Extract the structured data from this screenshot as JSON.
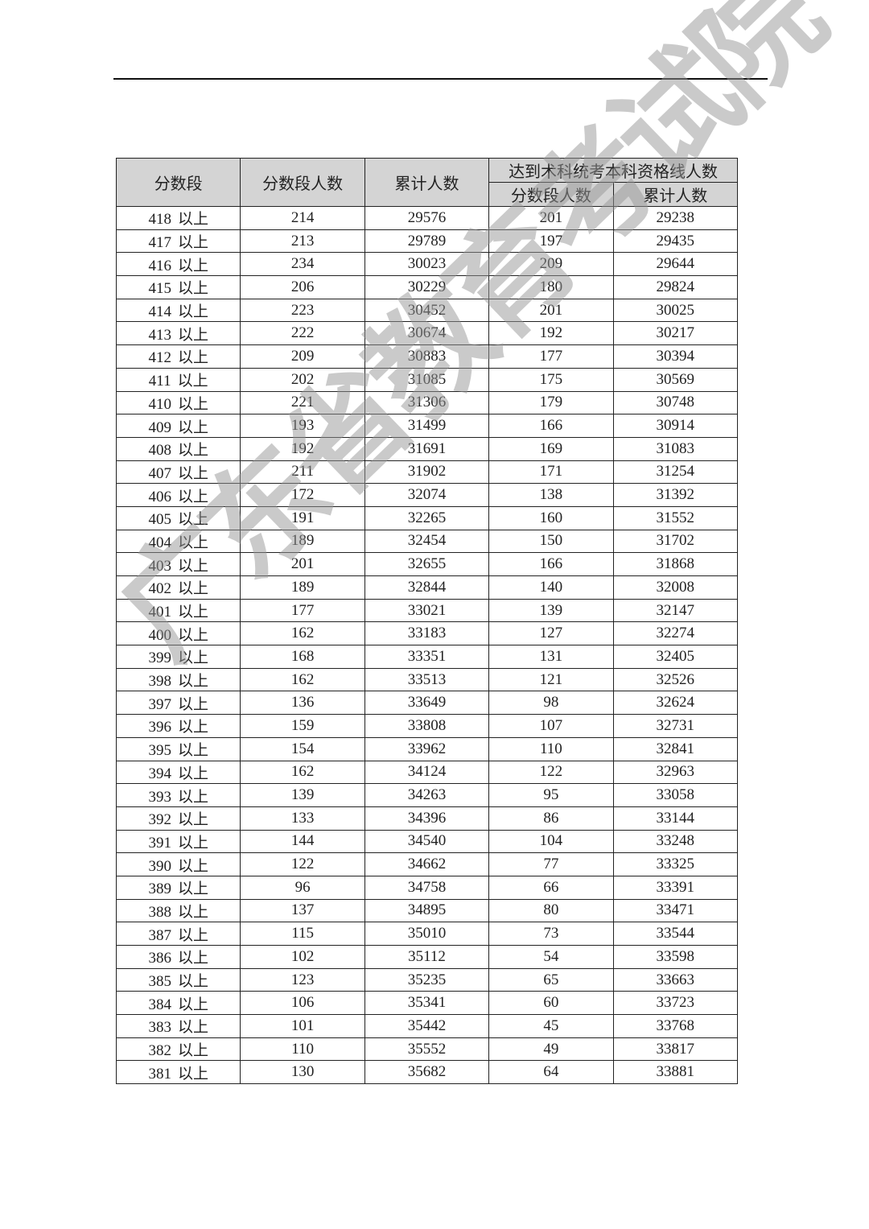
{
  "header": {
    "col_score": "分数段",
    "col_count": "分数段人数",
    "col_cumulative": "累计人数",
    "col_group": "达到术科统考本科资格线人数",
    "col_group_count": "分数段人数",
    "col_group_cumulative": "累计人数"
  },
  "score_suffix": "以上",
  "rows": [
    [
      "418",
      214,
      29576,
      201,
      29238
    ],
    [
      "417",
      213,
      29789,
      197,
      29435
    ],
    [
      "416",
      234,
      30023,
      209,
      29644
    ],
    [
      "415",
      206,
      30229,
      180,
      29824
    ],
    [
      "414",
      223,
      30452,
      201,
      30025
    ],
    [
      "413",
      222,
      30674,
      192,
      30217
    ],
    [
      "412",
      209,
      30883,
      177,
      30394
    ],
    [
      "411",
      202,
      31085,
      175,
      30569
    ],
    [
      "410",
      221,
      31306,
      179,
      30748
    ],
    [
      "409",
      193,
      31499,
      166,
      30914
    ],
    [
      "408",
      192,
      31691,
      169,
      31083
    ],
    [
      "407",
      211,
      31902,
      171,
      31254
    ],
    [
      "406",
      172,
      32074,
      138,
      31392
    ],
    [
      "405",
      191,
      32265,
      160,
      31552
    ],
    [
      "404",
      189,
      32454,
      150,
      31702
    ],
    [
      "403",
      201,
      32655,
      166,
      31868
    ],
    [
      "402",
      189,
      32844,
      140,
      32008
    ],
    [
      "401",
      177,
      33021,
      139,
      32147
    ],
    [
      "400",
      162,
      33183,
      127,
      32274
    ],
    [
      "399",
      168,
      33351,
      131,
      32405
    ],
    [
      "398",
      162,
      33513,
      121,
      32526
    ],
    [
      "397",
      136,
      33649,
      98,
      32624
    ],
    [
      "396",
      159,
      33808,
      107,
      32731
    ],
    [
      "395",
      154,
      33962,
      110,
      32841
    ],
    [
      "394",
      162,
      34124,
      122,
      32963
    ],
    [
      "393",
      139,
      34263,
      95,
      33058
    ],
    [
      "392",
      133,
      34396,
      86,
      33144
    ],
    [
      "391",
      144,
      34540,
      104,
      33248
    ],
    [
      "390",
      122,
      34662,
      77,
      33325
    ],
    [
      "389",
      96,
      34758,
      66,
      33391
    ],
    [
      "388",
      137,
      34895,
      80,
      33471
    ],
    [
      "387",
      115,
      35010,
      73,
      33544
    ],
    [
      "386",
      102,
      35112,
      54,
      33598
    ],
    [
      "385",
      123,
      35235,
      65,
      33663
    ],
    [
      "384",
      106,
      35341,
      60,
      33723
    ],
    [
      "383",
      101,
      35442,
      45,
      33768
    ],
    [
      "382",
      110,
      35552,
      49,
      33817
    ],
    [
      "381",
      130,
      35682,
      64,
      33881
    ]
  ],
  "watermark": "广东省教育考试院"
}
